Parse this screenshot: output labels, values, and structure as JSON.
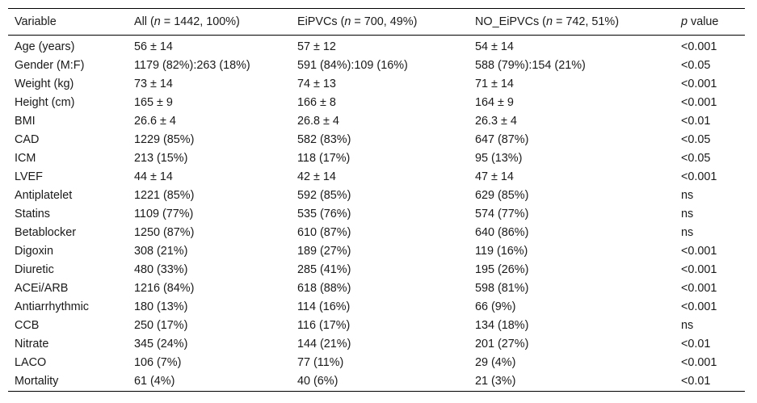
{
  "table": {
    "headers": [
      {
        "pre": "Variable",
        "italic": "",
        "post": ""
      },
      {
        "pre": "All (",
        "italic": "n",
        "post": " = 1442, 100%)"
      },
      {
        "pre": "EiPVCs (",
        "italic": "n",
        "post": " = 700, 49%)"
      },
      {
        "pre": "NO_EiPVCs (",
        "italic": "n",
        "post": " = 742, 51%)"
      },
      {
        "pre": "",
        "italic": "p",
        "post": " value"
      }
    ],
    "rows": [
      [
        "Age (years)",
        "56 ± 14",
        "57 ± 12",
        "54 ± 14",
        "<0.001"
      ],
      [
        "Gender (M:F)",
        "1179 (82%):263 (18%)",
        "591 (84%):109 (16%)",
        "588 (79%):154 (21%)",
        "<0.05"
      ],
      [
        "Weight (kg)",
        "73 ± 14",
        "74 ± 13",
        "71 ± 14",
        "<0.001"
      ],
      [
        "Height (cm)",
        "165 ± 9",
        "166 ± 8",
        "164 ± 9",
        "<0.001"
      ],
      [
        "BMI",
        "26.6 ± 4",
        "26.8 ± 4",
        "26.3 ± 4",
        "<0.01"
      ],
      [
        "CAD",
        "1229 (85%)",
        "582 (83%)",
        "647 (87%)",
        "<0.05"
      ],
      [
        "ICM",
        "213 (15%)",
        "118 (17%)",
        "95 (13%)",
        "<0.05"
      ],
      [
        "LVEF",
        "44 ± 14",
        "42 ± 14",
        "47 ± 14",
        "<0.001"
      ],
      [
        "Antiplatelet",
        "1221 (85%)",
        "592 (85%)",
        "629 (85%)",
        "ns"
      ],
      [
        "Statins",
        "1109 (77%)",
        "535 (76%)",
        "574 (77%)",
        "ns"
      ],
      [
        "Betablocker",
        "1250 (87%)",
        "610 (87%)",
        "640 (86%)",
        "ns"
      ],
      [
        "Digoxin",
        "308 (21%)",
        "189 (27%)",
        "119 (16%)",
        "<0.001"
      ],
      [
        "Diuretic",
        "480 (33%)",
        "285 (41%)",
        "195 (26%)",
        "<0.001"
      ],
      [
        "ACEi/ARB",
        "1216 (84%)",
        "618 (88%)",
        "598 (81%)",
        "<0.001"
      ],
      [
        "Antiarrhythmic",
        "180 (13%)",
        "114 (16%)",
        "66 (9%)",
        "<0.001"
      ],
      [
        "CCB",
        "250 (17%)",
        "116 (17%)",
        "134 (18%)",
        "ns"
      ],
      [
        "Nitrate",
        "345 (24%)",
        "144 (21%)",
        "201 (27%)",
        "<0.01"
      ],
      [
        "LACO",
        "106 (7%)",
        "77 (11%)",
        "29 (4%)",
        "<0.001"
      ],
      [
        "Mortality",
        "61 (4%)",
        "40 (6%)",
        "21 (3%)",
        "<0.01"
      ]
    ]
  }
}
